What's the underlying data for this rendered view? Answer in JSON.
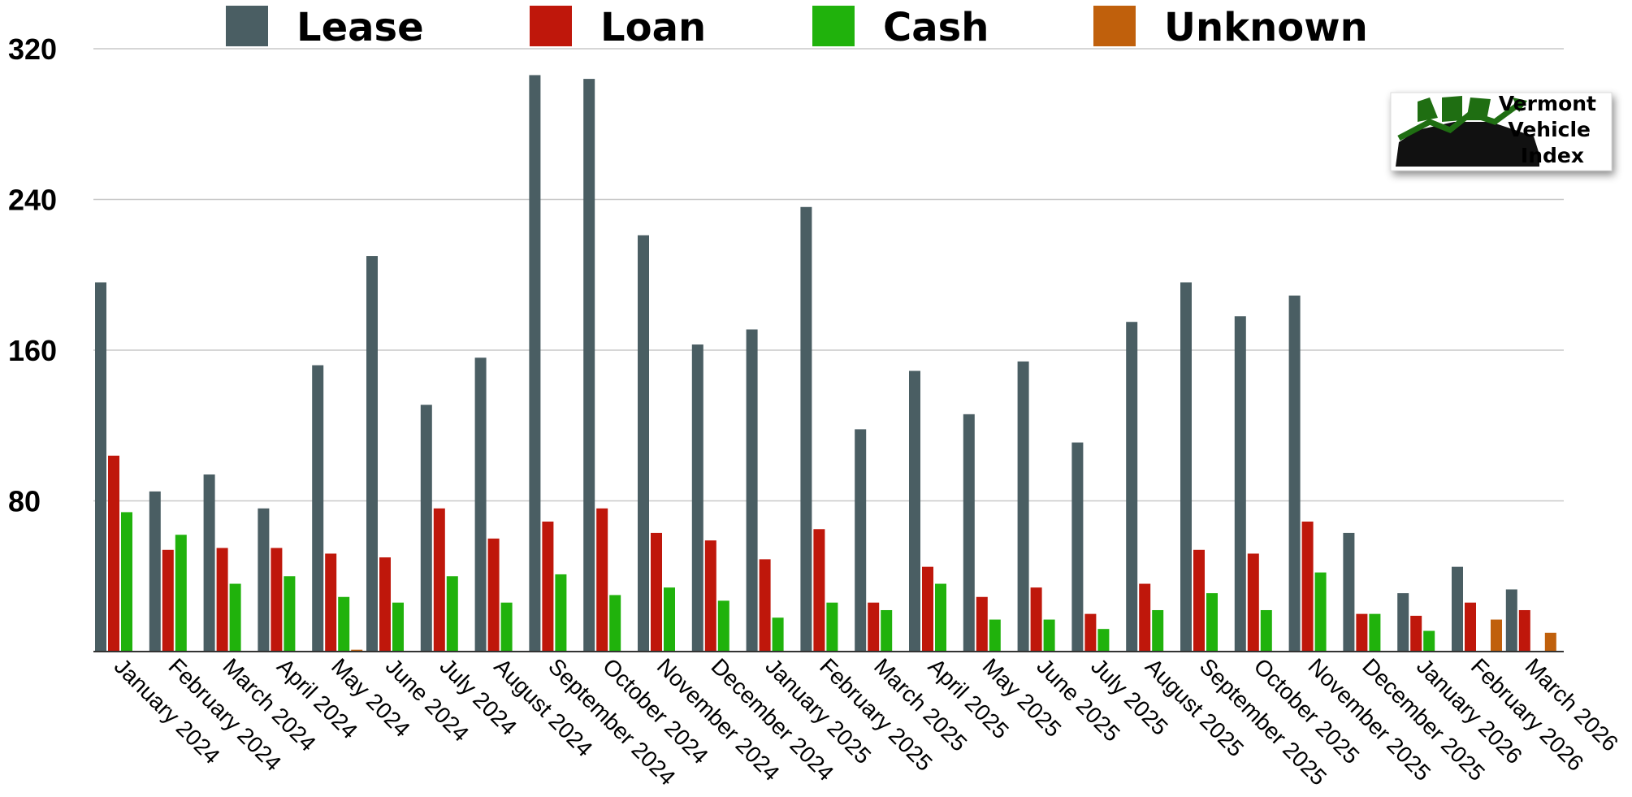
{
  "chart_data": {
    "type": "bar",
    "categories": [
      "January 2024",
      "February 2024",
      "March 2024",
      "April 2024",
      "May 2024",
      "June 2024",
      "July 2024",
      "August 2024",
      "September 2024",
      "October 2024",
      "November 2024",
      "December 2024",
      "January 2025",
      "February 2025",
      "March 2025",
      "April 2025",
      "May 2025",
      "June 2025",
      "July 2025",
      "August 2025",
      "September 2025",
      "October 2025",
      "November 2025",
      "December 2025",
      "January 2026",
      "February 2026",
      "March 2026"
    ],
    "series": [
      {
        "name": "Lease",
        "color": "#4a5e63",
        "values": [
          196,
          85,
          94,
          76,
          152,
          210,
          131,
          156,
          306,
          304,
          221,
          163,
          171,
          236,
          118,
          149,
          126,
          154,
          111,
          175,
          196,
          178,
          189,
          63,
          31,
          45,
          33
        ]
      },
      {
        "name": "Loan",
        "color": "#bf170b",
        "values": [
          104,
          54,
          55,
          55,
          52,
          50,
          76,
          60,
          69,
          76,
          63,
          59,
          49,
          65,
          26,
          45,
          29,
          34,
          20,
          36,
          54,
          52,
          69,
          20,
          19,
          26,
          22
        ]
      },
      {
        "name": "Cash",
        "color": "#20b20c",
        "values": [
          74,
          62,
          36,
          40,
          29,
          26,
          40,
          26,
          41,
          30,
          34,
          27,
          18,
          26,
          22,
          36,
          17,
          17,
          12,
          22,
          31,
          22,
          42,
          20,
          11,
          0,
          0
        ]
      },
      {
        "name": "Unknown",
        "color": "#c0600c",
        "values": [
          0,
          0,
          0,
          0,
          1,
          0,
          0,
          0,
          0,
          0,
          0,
          0,
          0,
          0,
          0,
          0,
          0,
          0,
          0,
          0,
          0,
          0,
          0,
          0,
          0,
          17,
          10
        ]
      }
    ],
    "y_ticks": [
      "80",
      "160",
      "240",
      "320"
    ],
    "ylim": [
      0,
      320
    ],
    "grid": true,
    "legend_position": "top",
    "title": "",
    "xlabel": "",
    "ylabel": ""
  },
  "logo": {
    "line1": "Vermont",
    "line2": "Vehicle",
    "line3": "Index"
  }
}
